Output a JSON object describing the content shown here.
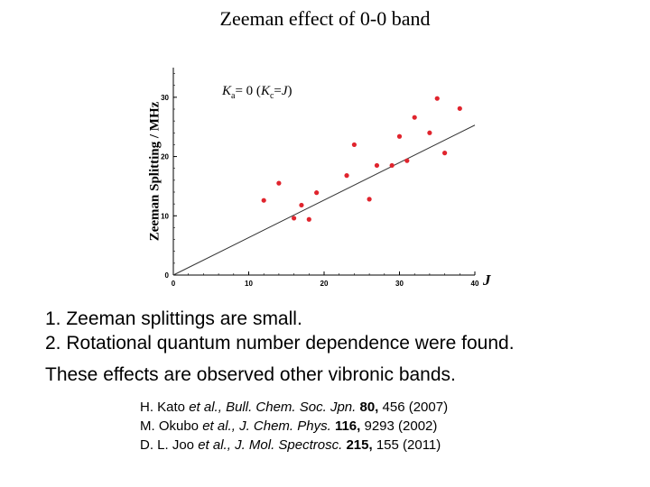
{
  "title": "Zeeman effect of 0-0 band",
  "chart_data": {
    "type": "scatter",
    "title": "Zeeman effect of 0-0 band",
    "xlabel": "J",
    "ylabel": "Zeeman Splitting / MHz",
    "xlim": [
      0,
      40
    ],
    "ylim": [
      0,
      35
    ],
    "xticks": [
      "0",
      "10",
      "20",
      "30",
      "40"
    ],
    "yticks": [
      "0",
      "10",
      "20",
      "30"
    ],
    "grid": false,
    "annotation": {
      "k_a": "K",
      "a_sub": "a",
      "eq": "= 0 (",
      "k_c": "K",
      "c_sub": "c",
      "eqJ": "=",
      "j": "J",
      "close": ")"
    },
    "fit_line": {
      "x": [
        0,
        40
      ],
      "y": [
        0,
        25.3
      ]
    },
    "x": [
      12,
      14,
      16,
      17,
      18,
      19,
      23,
      24,
      26,
      27,
      29,
      30,
      31,
      32,
      34,
      35,
      36,
      38
    ],
    "y": [
      12.6,
      15.5,
      9.6,
      11.8,
      9.4,
      13.9,
      16.8,
      22,
      12.8,
      18.5,
      18.5,
      23.4,
      19.3,
      26.6,
      24,
      29.8,
      20.6,
      28.1
    ],
    "marker_color": "#e0242d",
    "line_color": "#333333"
  },
  "points": [
    "1. Zeeman splittings are small.",
    "2. Rotational quantum number dependence were found."
  ],
  "note": "These effects are observed other vibronic bands.",
  "references": [
    {
      "authors": "H. Kato ",
      "etal": "et al.",
      "journal": ", Bull. Chem. Soc. Jpn.",
      "volume": " 80,",
      "rest": " 456 (2007)"
    },
    {
      "authors": "M. Okubo ",
      "etal": "et al.",
      "journal": ", J. Chem. Phys.",
      "volume": " 116,",
      "rest": " 9293 (2002)"
    },
    {
      "authors": "D. L. Joo ",
      "etal": "et al.",
      "journal": ", J. Mol. Spectrosc.",
      "volume": " 215,",
      "rest": " 155 (2011)"
    }
  ]
}
